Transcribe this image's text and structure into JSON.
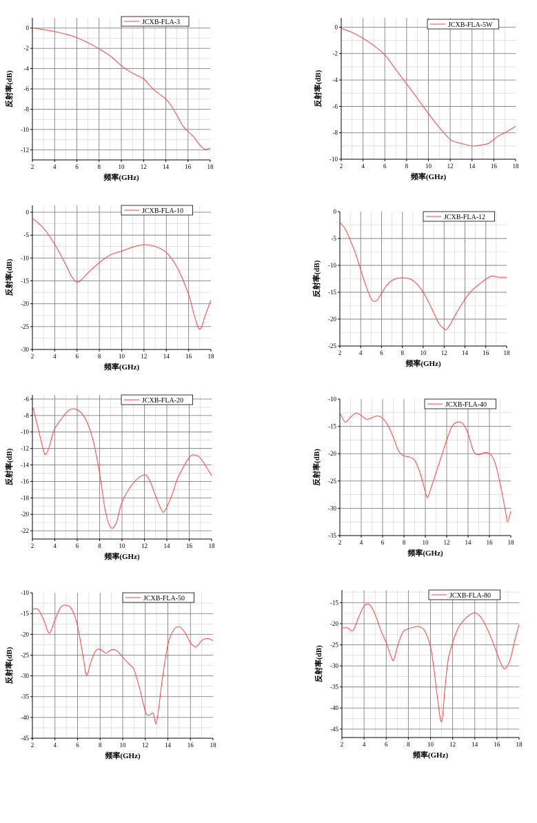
{
  "colors": {
    "line": "#ff4040",
    "grid": "#808080",
    "minor_grid": "#d0d0d0",
    "axis": "#000000"
  },
  "chart_data": [
    {
      "type": "line",
      "legend": "JCXB-FLA-3",
      "xlabel": "频率(GHz)",
      "ylabel": "反射率(dB)",
      "xlim": [
        2,
        18
      ],
      "ylim": [
        -13,
        1
      ],
      "xticks": [
        2,
        4,
        6,
        8,
        10,
        12,
        14,
        16,
        18
      ],
      "yticks": [
        0,
        -2,
        -4,
        -6,
        -8,
        -10,
        -12
      ],
      "x": [
        2,
        3,
        4,
        5,
        6,
        7,
        8,
        9,
        10,
        10.5,
        11,
        12,
        12.5,
        13,
        14,
        14.5,
        15,
        15.5,
        16,
        16.5,
        17,
        17.5,
        18
      ],
      "y": [
        0,
        -0.15,
        -0.35,
        -0.6,
        -0.95,
        -1.45,
        -2.05,
        -2.75,
        -3.7,
        -4.1,
        -4.45,
        -5.0,
        -5.6,
        -6.15,
        -7.0,
        -7.7,
        -8.6,
        -9.6,
        -10.2,
        -10.7,
        -11.45,
        -11.95,
        -11.85
      ]
    },
    {
      "type": "line",
      "legend": "JCXB-FLA-5W",
      "xlabel": "频率(GHz)",
      "ylabel": "反射率(dB)",
      "xlim": [
        2,
        18
      ],
      "ylim": [
        -10,
        0.7
      ],
      "xticks": [
        2,
        4,
        6,
        8,
        10,
        12,
        14,
        16,
        18
      ],
      "yticks": [
        0,
        -2,
        -4,
        -6,
        -8,
        -10
      ],
      "x": [
        2,
        3,
        4,
        5,
        6,
        7,
        8,
        9,
        10,
        11,
        12,
        12.5,
        13,
        14,
        15,
        15.5,
        16,
        16.5,
        17,
        18
      ],
      "y": [
        -0.1,
        -0.4,
        -0.85,
        -1.4,
        -2.1,
        -3.2,
        -4.3,
        -5.4,
        -6.55,
        -7.6,
        -8.5,
        -8.7,
        -8.8,
        -9.0,
        -8.9,
        -8.8,
        -8.5,
        -8.2,
        -8.0,
        -7.5
      ]
    },
    {
      "type": "line",
      "legend": "JCXB-FLA-10",
      "xlabel": "频率(GHz)",
      "ylabel": "反射率(dB)",
      "xlim": [
        2,
        18
      ],
      "ylim": [
        -30,
        1.5
      ],
      "xticks": [
        2,
        4,
        6,
        8,
        10,
        12,
        14,
        16,
        18
      ],
      "yticks": [
        0,
        -5,
        -10,
        -15,
        -20,
        -25,
        -30
      ],
      "x": [
        2,
        3,
        4,
        5,
        5.5,
        6,
        6.5,
        7,
        8,
        9,
        10,
        11,
        12,
        13,
        14,
        15,
        16,
        16.5,
        17,
        17.5,
        18
      ],
      "y": [
        -1.3,
        -3.5,
        -7,
        -11.5,
        -14,
        -15.3,
        -14.5,
        -13.2,
        -11,
        -9.3,
        -8.5,
        -7.6,
        -7.1,
        -7.5,
        -8.8,
        -12.2,
        -18,
        -22.5,
        -25.6,
        -22.5,
        -19.2
      ]
    },
    {
      "type": "line",
      "legend": "JCXB-FLA-12",
      "xlabel": "频率(GHz)",
      "ylabel": "反射率(dB)",
      "xlim": [
        2,
        18
      ],
      "ylim": [
        -25,
        0
      ],
      "xticks": [
        2,
        4,
        6,
        8,
        10,
        12,
        14,
        16,
        18
      ],
      "yticks": [
        0,
        -5,
        -10,
        -15,
        -20,
        -25
      ],
      "x": [
        2,
        2.5,
        3,
        3.5,
        4,
        4.5,
        5,
        5.3,
        5.6,
        6,
        6.5,
        7,
        7.5,
        8,
        8.5,
        9,
        9.5,
        10,
        10.5,
        11,
        11.5,
        12,
        12.3,
        12.8,
        13.5,
        14.5,
        15.5,
        16.5,
        17.2,
        18
      ],
      "y": [
        -2,
        -3.2,
        -5.3,
        -7.8,
        -10.8,
        -13.8,
        -16.2,
        -16.7,
        -16.4,
        -15.2,
        -13.7,
        -12.8,
        -12.4,
        -12.3,
        -12.4,
        -12.8,
        -13.7,
        -15,
        -16.8,
        -18.8,
        -20.8,
        -21.8,
        -21.8,
        -20.2,
        -17.8,
        -15,
        -13.3,
        -12,
        -12.2,
        -12.2
      ]
    },
    {
      "type": "line",
      "legend": "JCXB-FLA-20",
      "xlabel": "频率(GHz)",
      "ylabel": "反射率(dB)",
      "xlim": [
        2,
        18
      ],
      "ylim": [
        -23,
        -5.5
      ],
      "xticks": [
        2,
        4,
        6,
        8,
        10,
        12,
        14,
        16,
        18
      ],
      "yticks": [
        -6,
        -8,
        -10,
        -12,
        -14,
        -16,
        -18,
        -20,
        -22
      ],
      "x": [
        2,
        2.5,
        3,
        3.2,
        3.5,
        4,
        5,
        5.5,
        6,
        6.5,
        7,
        7.5,
        8,
        8.5,
        9,
        9.5,
        10,
        11,
        12,
        12.5,
        13,
        13.5,
        13.8,
        14.5,
        15,
        16,
        16.5,
        17,
        17.5,
        18
      ],
      "y": [
        -6.8,
        -9.5,
        -12.3,
        -12.7,
        -11.8,
        -9.6,
        -7.7,
        -7.2,
        -7.3,
        -7.9,
        -9.2,
        -11.5,
        -15,
        -19.5,
        -21.6,
        -21,
        -18.5,
        -16.2,
        -15.2,
        -16,
        -17.8,
        -19.4,
        -19.6,
        -17.5,
        -15.5,
        -13.1,
        -12.8,
        -13.2,
        -14.2,
        -15.3
      ]
    },
    {
      "type": "line",
      "legend": "JCXB-FLA-40",
      "xlabel": "频率(GHz)",
      "ylabel": "反射率(dB)",
      "xlim": [
        2,
        18
      ],
      "ylim": [
        -35,
        -10
      ],
      "xticks": [
        2,
        4,
        6,
        8,
        10,
        12,
        14,
        16,
        18
      ],
      "yticks": [
        -10,
        -15,
        -20,
        -25,
        -30,
        -35
      ],
      "x": [
        2,
        2.5,
        3,
        3.5,
        4,
        4.5,
        5,
        5.5,
        6,
        6.5,
        7,
        7.5,
        8,
        8.5,
        9,
        9.5,
        10,
        10.2,
        10.5,
        11,
        11.5,
        12,
        12.5,
        13,
        13.5,
        14,
        14.5,
        15,
        15.5,
        16,
        16.5,
        17,
        17.5,
        17.7,
        18
      ],
      "y": [
        -12.5,
        -14.2,
        -13.3,
        -12.6,
        -13,
        -13.7,
        -13.4,
        -13.1,
        -13.5,
        -14.8,
        -17,
        -19.5,
        -20.4,
        -20.6,
        -21.2,
        -23.5,
        -27,
        -28,
        -26.5,
        -23.5,
        -20.5,
        -17.5,
        -15,
        -14.2,
        -14.5,
        -16.3,
        -19.5,
        -20.2,
        -19.8,
        -20,
        -21.5,
        -25.5,
        -30.5,
        -32.5,
        -30.5
      ]
    },
    {
      "type": "line",
      "legend": "JCXB-FLA-50",
      "xlabel": "频率(GHz)",
      "ylabel": "反射率(dB)",
      "xlim": [
        2,
        18
      ],
      "ylim": [
        -45,
        -10
      ],
      "xticks": [
        2,
        4,
        6,
        8,
        10,
        12,
        14,
        16,
        18
      ],
      "yticks": [
        -10,
        -15,
        -20,
        -25,
        -30,
        -35,
        -40,
        -45
      ],
      "x": [
        2,
        2.5,
        3,
        3.5,
        4,
        4.5,
        5,
        5.5,
        6,
        6.5,
        6.8,
        7.2,
        7.6,
        8,
        8.5,
        9,
        9.5,
        10,
        10.5,
        11,
        11.5,
        12,
        12.3,
        12.7,
        13,
        13.5,
        14,
        14.5,
        15,
        15.5,
        16,
        16.5,
        17,
        17.5,
        18
      ],
      "y": [
        -14,
        -14,
        -16.5,
        -19.7,
        -16.5,
        -13.5,
        -13,
        -14,
        -18,
        -25.5,
        -29.8,
        -26.5,
        -24,
        -23.6,
        -24.5,
        -23.7,
        -24,
        -25.5,
        -27,
        -28.5,
        -33,
        -38.5,
        -39.5,
        -39,
        -41.2,
        -31,
        -22.5,
        -19,
        -18.2,
        -19.5,
        -22,
        -23,
        -21.5,
        -21,
        -21.5
      ]
    },
    {
      "type": "line",
      "legend": "JCXB-FLA-80",
      "xlabel": "频率(GHz)",
      "ylabel": "反射率(dB)",
      "xlim": [
        2,
        18
      ],
      "ylim": [
        -47,
        -12
      ],
      "xticks": [
        2,
        4,
        6,
        8,
        10,
        12,
        14,
        16,
        18
      ],
      "yticks": [
        -15,
        -20,
        -25,
        -30,
        -35,
        -40,
        -45
      ],
      "x": [
        2,
        2.5,
        3,
        3.5,
        4,
        4.5,
        5,
        5.5,
        6,
        6.5,
        6.7,
        7,
        7.5,
        8,
        8.5,
        9,
        9.5,
        10,
        10.3,
        10.6,
        11,
        11.3,
        11.6,
        12,
        12.5,
        13,
        13.5,
        14,
        14.5,
        15,
        15.5,
        16,
        16.5,
        16.8,
        17.2,
        17.6,
        18
      ],
      "y": [
        -21,
        -21,
        -21.6,
        -18.5,
        -15.8,
        -15.5,
        -17.8,
        -21.5,
        -24.5,
        -28.2,
        -28.5,
        -25.5,
        -22,
        -21.2,
        -20.8,
        -20.7,
        -21.8,
        -25.5,
        -30.5,
        -37,
        -43.3,
        -35.5,
        -28.5,
        -24.5,
        -21,
        -19.2,
        -18,
        -17.4,
        -18.3,
        -20.5,
        -23.5,
        -27,
        -30.2,
        -30.5,
        -28.5,
        -24,
        -20.2
      ]
    }
  ]
}
